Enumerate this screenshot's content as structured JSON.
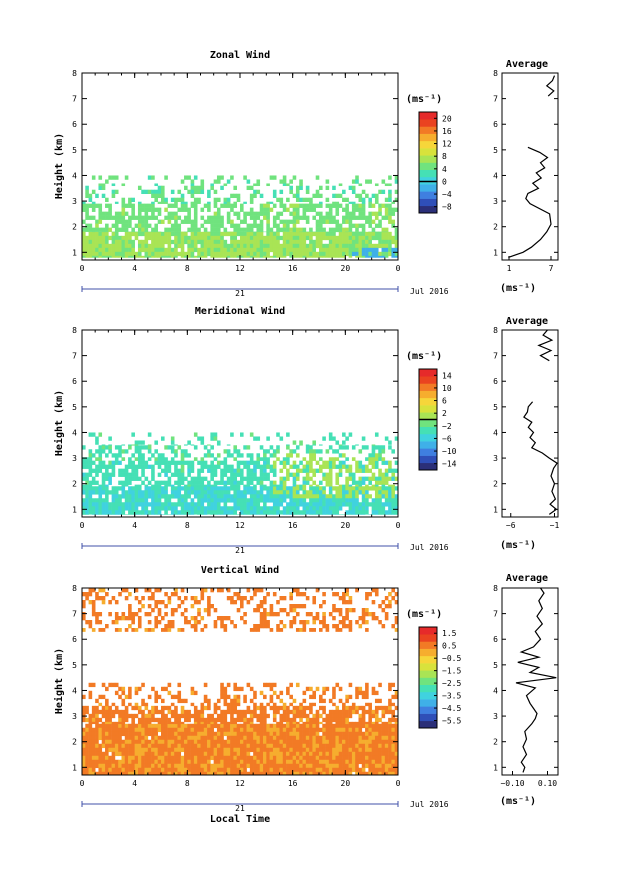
{
  "chart_data": [
    {
      "type": "heatmap",
      "title": "Zonal Wind",
      "ylabel": "Height (km)",
      "xlabel": "",
      "x_ticks": [
        "0",
        "4",
        "8",
        "12",
        "16",
        "20",
        "0"
      ],
      "y_ticks": [
        "1",
        "2",
        "3",
        "4",
        "5",
        "6",
        "7",
        "8"
      ],
      "xlim": [
        0,
        24
      ],
      "ylim": [
        0.7,
        8
      ],
      "date_label": "Jul 2016",
      "day_label": "21",
      "colorbar": {
        "unit": "(ms⁻¹)",
        "range": [
          -10,
          22
        ],
        "ticks": [
          "20",
          "16",
          "12",
          "8",
          "4",
          "0",
          "−4",
          "−8"
        ],
        "marker": 0
      },
      "field": {
        "layers": [
          {
            "h0": 0.8,
            "h1": 1.8,
            "v": 6.5,
            "cover": 0.92
          },
          {
            "h0": 1.8,
            "h1": 2.9,
            "v": 5.0,
            "cover": 0.65
          },
          {
            "h0": 2.9,
            "h1": 3.6,
            "v": 4.0,
            "cover": 0.35
          },
          {
            "h0": 3.6,
            "h1": 4.0,
            "v": 4.5,
            "cover": 0.25
          }
        ],
        "minus_region": {
          "t0": 20.5,
          "t1": 24,
          "h0": 0.8,
          "h1": 1.3,
          "v": -3
        }
      },
      "average": {
        "title": "Average",
        "xlabel": "(ms⁻¹)",
        "x_ticks": [
          "1",
          "7"
        ],
        "xlim": [
          0,
          8
        ],
        "profile": [
          [
            0.8,
            0.9
          ],
          [
            1.0,
            3.0
          ],
          [
            1.2,
            4.2
          ],
          [
            1.5,
            5.5
          ],
          [
            1.8,
            6.4
          ],
          [
            2.1,
            7.0
          ],
          [
            2.5,
            6.8
          ],
          [
            2.9,
            4.0
          ],
          [
            3.1,
            3.4
          ],
          [
            3.3,
            3.7
          ],
          [
            3.5,
            5.2
          ],
          [
            3.7,
            4.4
          ],
          [
            3.9,
            5.6
          ],
          [
            4.1,
            4.9
          ],
          [
            4.3,
            6.1
          ],
          [
            4.5,
            5.5
          ],
          [
            4.7,
            6.5
          ],
          [
            4.9,
            5.4
          ],
          [
            5.1,
            3.7
          ],
          [
            7.1,
            6.6
          ],
          [
            7.3,
            7.4
          ],
          [
            7.5,
            6.4
          ],
          [
            7.7,
            7.2
          ],
          [
            7.9,
            7.5
          ]
        ],
        "profile_gap": [
          5.1,
          7.1
        ]
      }
    },
    {
      "type": "heatmap",
      "title": "Meridional Wind",
      "ylabel": "Height (km)",
      "xlabel": "",
      "x_ticks": [
        "0",
        "4",
        "8",
        "12",
        "16",
        "20",
        "0"
      ],
      "y_ticks": [
        "1",
        "2",
        "3",
        "4",
        "5",
        "6",
        "7",
        "8"
      ],
      "xlim": [
        0,
        24
      ],
      "ylim": [
        0.7,
        8
      ],
      "date_label": "Jul 2016",
      "day_label": "21",
      "colorbar": {
        "unit": "(ms⁻¹)",
        "range": [
          -16,
          16
        ],
        "ticks": [
          "14",
          "10",
          "6",
          "2",
          "−2",
          "−6",
          "−10",
          "−14"
        ],
        "marker": 0
      },
      "field": {
        "layers": [
          {
            "h0": 0.8,
            "h1": 1.9,
            "v": -4.5,
            "cover": 0.9
          },
          {
            "h0": 1.9,
            "h1": 2.9,
            "v": -3.5,
            "cover": 0.65
          },
          {
            "h0": 2.9,
            "h1": 3.5,
            "v": -3.0,
            "cover": 0.4
          },
          {
            "h0": 3.5,
            "h1": 4.0,
            "v": -3.0,
            "cover": 0.2
          }
        ],
        "plus_region": {
          "t0": 14.5,
          "t1": 24,
          "h0": 1.5,
          "h1": 3.3,
          "v": 0.5
        }
      },
      "average": {
        "title": "Average",
        "xlabel": "(ms⁻¹)",
        "x_ticks": [
          "−6",
          "−1"
        ],
        "xlim": [
          -7,
          -0.6
        ],
        "profile": [
          [
            0.8,
            -1.6
          ],
          [
            1.0,
            -0.8
          ],
          [
            1.2,
            -1.5
          ],
          [
            1.4,
            -0.9
          ],
          [
            1.7,
            -1.3
          ],
          [
            2.0,
            -1.0
          ],
          [
            2.3,
            -1.4
          ],
          [
            2.6,
            -1.1
          ],
          [
            2.8,
            -0.7
          ],
          [
            3.0,
            -1.6
          ],
          [
            3.2,
            -2.4
          ],
          [
            3.4,
            -3.6
          ],
          [
            3.6,
            -3.2
          ],
          [
            3.8,
            -3.8
          ],
          [
            4.0,
            -3.4
          ],
          [
            4.2,
            -4.0
          ],
          [
            4.4,
            -3.6
          ],
          [
            4.6,
            -4.5
          ],
          [
            4.8,
            -4.1
          ],
          [
            5.0,
            -4.0
          ],
          [
            5.2,
            -3.5
          ],
          [
            6.8,
            -1.6
          ],
          [
            7.0,
            -2.6
          ],
          [
            7.2,
            -1.4
          ],
          [
            7.4,
            -2.8
          ],
          [
            7.6,
            -1.3
          ],
          [
            7.8,
            -2.3
          ],
          [
            8.0,
            -1.8
          ]
        ],
        "profile_gap": [
          5.2,
          6.8
        ]
      }
    },
    {
      "type": "heatmap",
      "title": "Vertical Wind",
      "ylabel": "Height (km)",
      "xlabel": "Local Time",
      "x_ticks": [
        "0",
        "4",
        "8",
        "12",
        "16",
        "20",
        "0"
      ],
      "y_ticks": [
        "1",
        "2",
        "3",
        "4",
        "5",
        "6",
        "7",
        "8"
      ],
      "xlim": [
        0,
        24
      ],
      "ylim": [
        0.7,
        8
      ],
      "date_label": "Jul 2016",
      "day_label": "21",
      "colorbar": {
        "unit": "(ms⁻¹)",
        "range": [
          -6.1,
          2.0
        ],
        "ticks": [
          "1.5",
          "0.5",
          "−0.5",
          "−1.5",
          "−2.5",
          "−3.5",
          "−4.5",
          "−5.5"
        ],
        "marker": null
      },
      "field": {
        "layers": [
          {
            "h0": 0.7,
            "h1": 2.7,
            "v": 0.4,
            "cover": 0.98
          },
          {
            "h0": 2.7,
            "h1": 3.4,
            "v": 0.5,
            "cover": 0.7
          },
          {
            "h0": 3.4,
            "h1": 4.3,
            "v": 0.5,
            "cover": 0.3
          },
          {
            "h0": 6.3,
            "h1": 8.0,
            "v": 0.5,
            "cover": 0.35
          }
        ]
      },
      "average": {
        "title": "Average",
        "xlabel": "(ms⁻¹)",
        "x_ticks": [
          "−0.10",
          "0.10"
        ],
        "xlim": [
          -0.16,
          0.16
        ],
        "profile": [
          [
            0.8,
            -0.04
          ],
          [
            1.0,
            -0.03
          ],
          [
            1.2,
            -0.05
          ],
          [
            1.5,
            -0.02
          ],
          [
            1.8,
            -0.04
          ],
          [
            2.1,
            -0.02
          ],
          [
            2.4,
            -0.03
          ],
          [
            2.7,
            0.01
          ],
          [
            2.9,
            0.03
          ],
          [
            3.1,
            0.04
          ],
          [
            3.3,
            0.02
          ],
          [
            3.5,
            0.0
          ],
          [
            3.8,
            -0.02
          ],
          [
            4.1,
            0.03
          ],
          [
            4.3,
            -0.08
          ],
          [
            4.5,
            0.15
          ],
          [
            4.7,
            0.0
          ],
          [
            4.9,
            0.05
          ],
          [
            5.1,
            -0.07
          ],
          [
            5.3,
            0.05
          ],
          [
            5.5,
            -0.05
          ],
          [
            5.7,
            0.02
          ],
          [
            6.0,
            0.06
          ],
          [
            6.3,
            0.03
          ],
          [
            6.6,
            0.07
          ],
          [
            6.9,
            0.04
          ],
          [
            7.2,
            0.07
          ],
          [
            7.5,
            0.05
          ],
          [
            7.8,
            0.08
          ],
          [
            8.0,
            0.06
          ]
        ],
        "profile_gap": null
      }
    }
  ]
}
